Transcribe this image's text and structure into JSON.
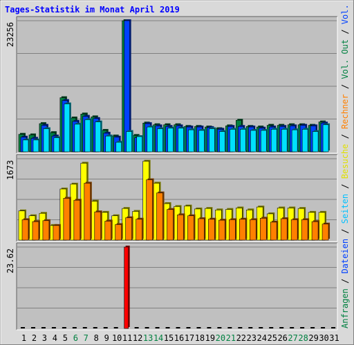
{
  "title": "Tages-Statistik im Monat April 2019",
  "right_legend": [
    {
      "text": "Anfragen",
      "color": "#008040"
    },
    {
      "text": " / ",
      "color": "#000000"
    },
    {
      "text": "Dateien",
      "color": "#0040ff"
    },
    {
      "text": " / ",
      "color": "#000000"
    },
    {
      "text": "Seiten",
      "color": "#00c0ff"
    },
    {
      "text": " / ",
      "color": "#000000"
    },
    {
      "text": "Besuche",
      "color": "#e0e000"
    },
    {
      "text": " / ",
      "color": "#000000"
    },
    {
      "text": "Rechner",
      "color": "#ff8000"
    },
    {
      "text": " / ",
      "color": "#000000"
    },
    {
      "text": "Vol. Out",
      "color": "#008040"
    },
    {
      "text": " / ",
      "color": "#000000"
    },
    {
      "text": "Vol. In",
      "color": "#0040ff"
    },
    {
      "text": " / ",
      "color": "#000000"
    },
    {
      "text": "Volumen",
      "color": "#ff0000"
    }
  ],
  "chart_data": {
    "type": "bar",
    "categories": [
      "1",
      "2",
      "3",
      "4",
      "5",
      "6",
      "7",
      "8",
      "9",
      "10",
      "11",
      "12",
      "13",
      "14",
      "15",
      "16",
      "17",
      "18",
      "19",
      "20",
      "21",
      "22",
      "23",
      "24",
      "25",
      "26",
      "27",
      "28",
      "29",
      "30",
      "31"
    ],
    "weekend_days": [
      "6",
      "7",
      "13",
      "14",
      "20",
      "21",
      "27",
      "28"
    ],
    "colors": {
      "anfragen": "#008040",
      "dateien": "#0040ff",
      "seiten": "#00e0ff",
      "besuche": "#ffff00",
      "rechner": "#ff8000",
      "volumen": "#ff0000",
      "plot_bg": "#c0c0c0",
      "page_bg": "#d9d9d9",
      "title": "#0000ff",
      "weekend_label": "#008040"
    },
    "panels": [
      {
        "name": "requests",
        "ymax_label": "23256",
        "ymax": 23256,
        "series": [
          {
            "name": "Anfragen",
            "key": "anfragen",
            "values": [
              3100,
              3000,
              5000,
              3400,
              9600,
              6000,
              6700,
              6200,
              3800,
              2800,
              23256,
              2900,
              5100,
              4800,
              4800,
              4800,
              4500,
              4500,
              4400,
              4100,
              4600,
              5600,
              4500,
              4400,
              4700,
              4700,
              4800,
              4800,
              4700,
              5300,
              0
            ]
          },
          {
            "name": "Dateien",
            "key": "dateien",
            "values": [
              2600,
              2400,
              4700,
              2800,
              9100,
              5400,
              6300,
              5900,
              3300,
              2600,
              23256,
              2500,
              5000,
              4600,
              4500,
              4600,
              4400,
              4400,
              4300,
              4000,
              4500,
              4500,
              4400,
              4200,
              4400,
              4500,
              4600,
              4700,
              4600,
              5100,
              0
            ]
          },
          {
            "name": "Seiten",
            "key": "seiten",
            "values": [
              2100,
              2100,
              4100,
              2500,
              8500,
              4900,
              5700,
              5300,
              2800,
              1700,
              3600,
              2700,
              4400,
              4100,
              4200,
              4200,
              3900,
              3800,
              4100,
              3600,
              4000,
              4000,
              3800,
              3800,
              4000,
              4000,
              3900,
              4000,
              3600,
              4800,
              0
            ]
          }
        ]
      },
      {
        "name": "visits",
        "ymax_label": "1673",
        "ymax": 1673,
        "series": [
          {
            "name": "Besuche",
            "key": "besuche",
            "values": [
              600,
              500,
              550,
              300,
              1050,
              1150,
              1580,
              800,
              570,
              500,
              650,
              590,
              1620,
              1170,
              750,
              690,
              700,
              640,
              650,
              620,
              630,
              660,
              620,
              680,
              540,
              660,
              660,
              650,
              570,
              570,
              0
            ]
          },
          {
            "name": "Rechner",
            "key": "rechner",
            "values": [
              420,
              380,
              400,
              300,
              860,
              820,
              1170,
              580,
              390,
              320,
              460,
              430,
              1240,
              970,
              630,
              520,
              500,
              440,
              430,
              410,
              420,
              430,
              420,
              450,
              370,
              440,
              420,
              420,
              380,
              330,
              0
            ]
          }
        ]
      },
      {
        "name": "volume",
        "ymax_label": "23.62",
        "ymax": 23.62,
        "series": [
          {
            "name": "Volumen",
            "key": "volumen",
            "values": [
              0,
              0,
              0,
              0,
              0,
              0,
              0,
              0,
              0,
              0,
              23.62,
              0,
              0,
              0,
              0,
              0,
              0,
              0,
              0,
              0,
              0,
              0,
              0,
              0,
              0,
              0,
              0,
              0,
              0,
              0,
              0
            ]
          }
        ]
      }
    ]
  }
}
